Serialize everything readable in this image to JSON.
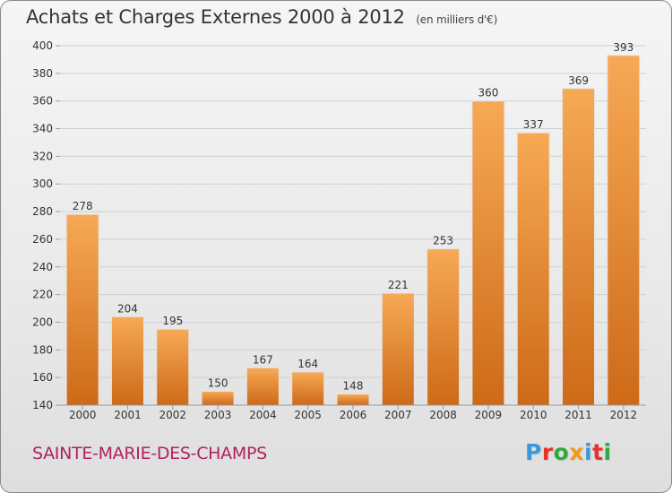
{
  "header": {
    "title": "Achats et Charges Externes 2000 à 2012",
    "unit": "(en milliers d'€)"
  },
  "footer": {
    "town": "SAINTE-MARIE-DES-CHAMPS",
    "logo_text": "Proxiti",
    "logo_colors": [
      "#3a9ad9",
      "#e8322b",
      "#2faa3c",
      "#f29a1a",
      "#3a9ad9",
      "#e8322b",
      "#2faa3c"
    ]
  },
  "colors": {
    "bar_light": "#f7a955",
    "bar_dark": "#cd6a18",
    "grid": "#cfcfcf",
    "axis": "#9a9a9a",
    "plot_bg": "#eaeaea"
  },
  "chart_data": {
    "type": "bar",
    "categories": [
      "2000",
      "2001",
      "2002",
      "2003",
      "2004",
      "2005",
      "2006",
      "2007",
      "2008",
      "2009",
      "2010",
      "2011",
      "2012"
    ],
    "values": [
      278,
      204,
      195,
      150,
      167,
      164,
      148,
      221,
      253,
      360,
      337,
      369,
      393
    ],
    "title": "Achats et Charges Externes 2000 à 2012",
    "ylim": [
      140,
      400
    ],
    "yticks": [
      140,
      160,
      180,
      200,
      220,
      240,
      260,
      280,
      300,
      320,
      340,
      360,
      380,
      400
    ],
    "grid": true,
    "data_labels": true
  }
}
